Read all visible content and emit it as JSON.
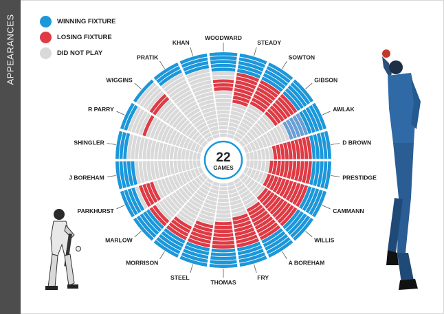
{
  "sidebar": {
    "title": "APPEARANCES"
  },
  "legend": [
    {
      "label": "WINNING FIXTURE",
      "color": "#1c97da"
    },
    {
      "label": "LOSING FIXTURE",
      "color": "#de3b45"
    },
    {
      "label": "DID NOT PLAY",
      "color": "#d9d9d9"
    }
  ],
  "chart_data": {
    "type": "radial-grid",
    "title": "",
    "total_games": 22,
    "center_value": "22",
    "center_label": "GAMES",
    "players": [
      "WOODWARD",
      "STEADY",
      "SOWTON",
      "GIBSON",
      "AWLAK",
      "D BROWN",
      "PRESTIDGE",
      "CAMMANN",
      "WILLIS",
      "A BOREHAM",
      "FRY",
      "THOMAS",
      "STEEL",
      "MORRISON",
      "MARLOW",
      "PARKHURST",
      "J BOREHAM",
      "SHINGLER",
      "R PARRY",
      "WIGGINS",
      "PRATIK",
      "KHAN"
    ],
    "games": [
      {
        "game": 1,
        "result": "W",
        "played": [
          1,
          1,
          1,
          1,
          1,
          1,
          1,
          1,
          1,
          1,
          1,
          1,
          1,
          1,
          1,
          1,
          1,
          1,
          1,
          1,
          1,
          1
        ]
      },
      {
        "game": 2,
        "result": "W",
        "played": [
          1,
          1,
          1,
          1,
          1,
          1,
          1,
          1,
          1,
          1,
          1,
          1,
          1,
          1,
          1,
          1,
          1,
          1,
          1,
          0,
          1,
          1
        ]
      },
      {
        "game": 3,
        "result": "W",
        "played": [
          1,
          1,
          1,
          1,
          1,
          1,
          1,
          1,
          1,
          1,
          1,
          1,
          1,
          1,
          1,
          1,
          1,
          1,
          0,
          0,
          1,
          1
        ]
      },
      {
        "game": 4,
        "result": "W",
        "played": [
          1,
          1,
          1,
          1,
          1,
          1,
          1,
          1,
          1,
          1,
          1,
          1,
          1,
          1,
          1,
          1,
          1,
          0,
          0,
          0,
          0,
          1
        ]
      },
      {
        "game": 5,
        "result": "W",
        "played": [
          1,
          1,
          1,
          1,
          1,
          1,
          1,
          1,
          1,
          1,
          1,
          1,
          1,
          1,
          1,
          0,
          1,
          0,
          0,
          0,
          0,
          0
        ]
      },
      {
        "game": 6,
        "result": "L",
        "played": [
          0,
          1,
          1,
          1,
          1,
          1,
          1,
          1,
          1,
          1,
          1,
          1,
          1,
          1,
          1,
          1,
          0,
          0,
          0,
          1,
          0,
          0
        ]
      },
      {
        "game": 7,
        "result": "L",
        "played": [
          0,
          1,
          1,
          1,
          1,
          1,
          1,
          1,
          1,
          1,
          1,
          1,
          1,
          1,
          1,
          1,
          0,
          0,
          1,
          1,
          0,
          0
        ]
      },
      {
        "game": 8,
        "result": "L",
        "played": [
          1,
          1,
          1,
          1,
          1,
          1,
          1,
          1,
          1,
          1,
          1,
          1,
          1,
          1,
          0,
          1,
          0,
          0,
          0,
          0,
          0,
          0
        ]
      },
      {
        "game": 9,
        "result": "L",
        "played": [
          1,
          1,
          1,
          1,
          1,
          1,
          1,
          1,
          1,
          1,
          1,
          1,
          1,
          1,
          0,
          1,
          0,
          0,
          0,
          0,
          0,
          0
        ]
      },
      {
        "game": 10,
        "result": "L",
        "played": [
          1,
          1,
          1,
          1,
          1,
          1,
          1,
          1,
          1,
          1,
          1,
          1,
          1,
          0,
          0,
          0,
          0,
          0,
          0,
          0,
          0,
          0
        ]
      },
      {
        "game": 11,
        "result": "L",
        "played": [
          0,
          1,
          1,
          1,
          0,
          1,
          1,
          1,
          1,
          1,
          1,
          1,
          1,
          0,
          0,
          0,
          0,
          0,
          0,
          0,
          0,
          0
        ]
      },
      {
        "game": 12,
        "result": "L",
        "played": [
          0,
          1,
          1,
          1,
          0,
          1,
          1,
          1,
          1,
          1,
          1,
          1,
          0,
          0,
          0,
          0,
          0,
          0,
          0,
          0,
          0,
          0
        ]
      },
      {
        "game": 13,
        "result": "L",
        "played": [
          0,
          1,
          0,
          0,
          0,
          1,
          1,
          1,
          1,
          1,
          1,
          0,
          0,
          0,
          0,
          0,
          0,
          0,
          0,
          0,
          0,
          0
        ]
      },
      {
        "game": 14,
        "result": "L",
        "played": [
          0,
          0,
          0,
          0,
          0,
          1,
          1,
          1,
          1,
          1,
          0,
          0,
          0,
          0,
          0,
          0,
          0,
          0,
          0,
          0,
          0,
          0
        ]
      },
      {
        "game": 15,
        "result": "L",
        "played": [
          0,
          0,
          0,
          0,
          0,
          1,
          1,
          1,
          1,
          0,
          0,
          0,
          0,
          0,
          0,
          0,
          0,
          0,
          0,
          0,
          0,
          0
        ]
      },
      {
        "game": 16,
        "result": "L",
        "played": [
          0,
          0,
          0,
          0,
          0,
          0,
          1,
          1,
          0,
          0,
          0,
          0,
          0,
          0,
          0,
          0,
          0,
          0,
          0,
          0,
          0,
          0
        ]
      },
      {
        "game": 17,
        "result": "L",
        "played": [
          0,
          0,
          0,
          0,
          0,
          0,
          0,
          0,
          0,
          0,
          0,
          0,
          0,
          0,
          0,
          0,
          0,
          0,
          0,
          0,
          0,
          0
        ]
      },
      {
        "game": 18,
        "result": "L",
        "played": [
          0,
          0,
          0,
          0,
          0,
          0,
          0,
          0,
          0,
          0,
          0,
          0,
          0,
          0,
          0,
          0,
          0,
          0,
          0,
          0,
          0,
          0
        ]
      },
      {
        "game": 19,
        "result": "L",
        "played": [
          0,
          0,
          0,
          0,
          0,
          0,
          0,
          0,
          0,
          0,
          0,
          0,
          0,
          0,
          0,
          0,
          0,
          0,
          0,
          0,
          0,
          0
        ]
      },
      {
        "game": 20,
        "result": "L",
        "played": [
          0,
          0,
          0,
          0,
          0,
          0,
          0,
          0,
          0,
          0,
          0,
          0,
          0,
          0,
          0,
          0,
          0,
          0,
          0,
          0,
          0,
          0
        ]
      },
      {
        "game": 21,
        "result": "L",
        "played": [
          0,
          0,
          0,
          0,
          0,
          0,
          0,
          0,
          0,
          0,
          0,
          0,
          0,
          0,
          0,
          0,
          0,
          0,
          0,
          0,
          0,
          0
        ]
      },
      {
        "game": 22,
        "result": "L",
        "played": [
          0,
          0,
          0,
          0,
          0,
          0,
          0,
          0,
          0,
          0,
          0,
          0,
          0,
          0,
          0,
          0,
          0,
          0,
          0,
          0,
          0,
          0
        ]
      }
    ],
    "highlight": {
      "player": "AWLAK",
      "color": "#6a9fd6"
    },
    "colors": {
      "win": "#1c97da",
      "loss": "#de3b45",
      "dnp": "#d9d9d9"
    }
  }
}
